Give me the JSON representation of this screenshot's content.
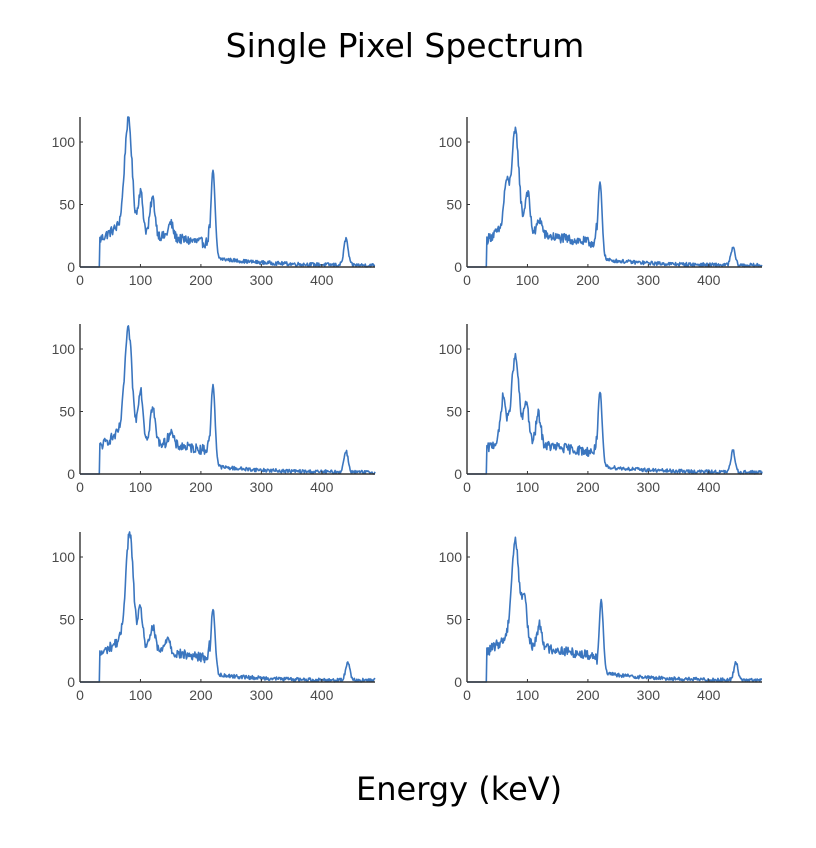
{
  "figure": {
    "title": "Single Pixel Spectrum",
    "xlabel": "Energy (keV)",
    "line_color": "#3b76bf",
    "axis_color": "#333333",
    "tick_color": "#4a4a4a"
  },
  "chart_data": [
    {
      "type": "line",
      "panel": "row1-col1",
      "xlim": [
        0,
        488
      ],
      "ylim": [
        0,
        120
      ],
      "xticks": [
        0,
        100,
        200,
        300,
        400
      ],
      "yticks": [
        0,
        50,
        100
      ],
      "onset_keV": 33,
      "series": [
        {
          "name": "spectrum",
          "peaks": [
            {
              "x": 80,
              "y": 118
            },
            {
              "x": 100,
              "y": 60
            },
            {
              "x": 120,
              "y": 55
            },
            {
              "x": 150,
              "y": 35
            },
            {
              "x": 220,
              "y": 70
            },
            {
              "x": 440,
              "y": 22
            }
          ],
          "continuum_level": 22,
          "tail_level": 6
        }
      ]
    },
    {
      "type": "line",
      "panel": "row1-col2",
      "xlim": [
        0,
        488
      ],
      "ylim": [
        0,
        120
      ],
      "xticks": [
        0,
        100,
        200,
        300,
        400
      ],
      "yticks": [
        0,
        50,
        100
      ],
      "onset_keV": 33,
      "series": [
        {
          "name": "spectrum",
          "peaks": [
            {
              "x": 65,
              "y": 66
            },
            {
              "x": 80,
              "y": 108
            },
            {
              "x": 100,
              "y": 60
            },
            {
              "x": 120,
              "y": 38
            },
            {
              "x": 220,
              "y": 62
            },
            {
              "x": 440,
              "y": 15
            }
          ],
          "continuum_level": 22,
          "tail_level": 5
        }
      ]
    },
    {
      "type": "line",
      "panel": "row2-col1",
      "xlim": [
        0,
        488
      ],
      "ylim": [
        0,
        120
      ],
      "xticks": [
        0,
        100,
        200,
        300,
        400
      ],
      "yticks": [
        0,
        50,
        100
      ],
      "onset_keV": 33,
      "series": [
        {
          "name": "spectrum",
          "peaks": [
            {
              "x": 80,
              "y": 115
            },
            {
              "x": 100,
              "y": 68
            },
            {
              "x": 120,
              "y": 53
            },
            {
              "x": 150,
              "y": 34
            },
            {
              "x": 220,
              "y": 66
            },
            {
              "x": 440,
              "y": 18
            }
          ],
          "continuum_level": 22,
          "tail_level": 5
        }
      ]
    },
    {
      "type": "line",
      "panel": "row2-col2",
      "xlim": [
        0,
        488
      ],
      "ylim": [
        0,
        120
      ],
      "xticks": [
        0,
        100,
        200,
        300,
        400
      ],
      "yticks": [
        0,
        50,
        100
      ],
      "onset_keV": 33,
      "series": [
        {
          "name": "spectrum",
          "peaks": [
            {
              "x": 60,
              "y": 62
            },
            {
              "x": 80,
              "y": 93
            },
            {
              "x": 98,
              "y": 58
            },
            {
              "x": 118,
              "y": 48
            },
            {
              "x": 220,
              "y": 60
            },
            {
              "x": 440,
              "y": 18
            }
          ],
          "continuum_level": 20,
          "tail_level": 5
        }
      ]
    },
    {
      "type": "line",
      "panel": "row3-col1",
      "xlim": [
        0,
        488
      ],
      "ylim": [
        0,
        120
      ],
      "xticks": [
        0,
        100,
        200,
        300,
        400
      ],
      "yticks": [
        0,
        50,
        100
      ],
      "onset_keV": 33,
      "series": [
        {
          "name": "spectrum",
          "peaks": [
            {
              "x": 82,
              "y": 120
            },
            {
              "x": 100,
              "y": 57
            },
            {
              "x": 120,
              "y": 44
            },
            {
              "x": 145,
              "y": 36
            },
            {
              "x": 220,
              "y": 53
            },
            {
              "x": 443,
              "y": 16
            }
          ],
          "continuum_level": 22,
          "tail_level": 5
        }
      ]
    },
    {
      "type": "line",
      "panel": "row3-col2",
      "xlim": [
        0,
        488
      ],
      "ylim": [
        0,
        120
      ],
      "xticks": [
        0,
        100,
        200,
        300,
        400
      ],
      "yticks": [
        0,
        50,
        100
      ],
      "onset_keV": 33,
      "series": [
        {
          "name": "spectrum",
          "peaks": [
            {
              "x": 80,
              "y": 113
            },
            {
              "x": 95,
              "y": 68
            },
            {
              "x": 120,
              "y": 46
            },
            {
              "x": 222,
              "y": 59
            },
            {
              "x": 445,
              "y": 15
            }
          ],
          "continuum_level": 24,
          "tail_level": 6
        }
      ]
    }
  ]
}
